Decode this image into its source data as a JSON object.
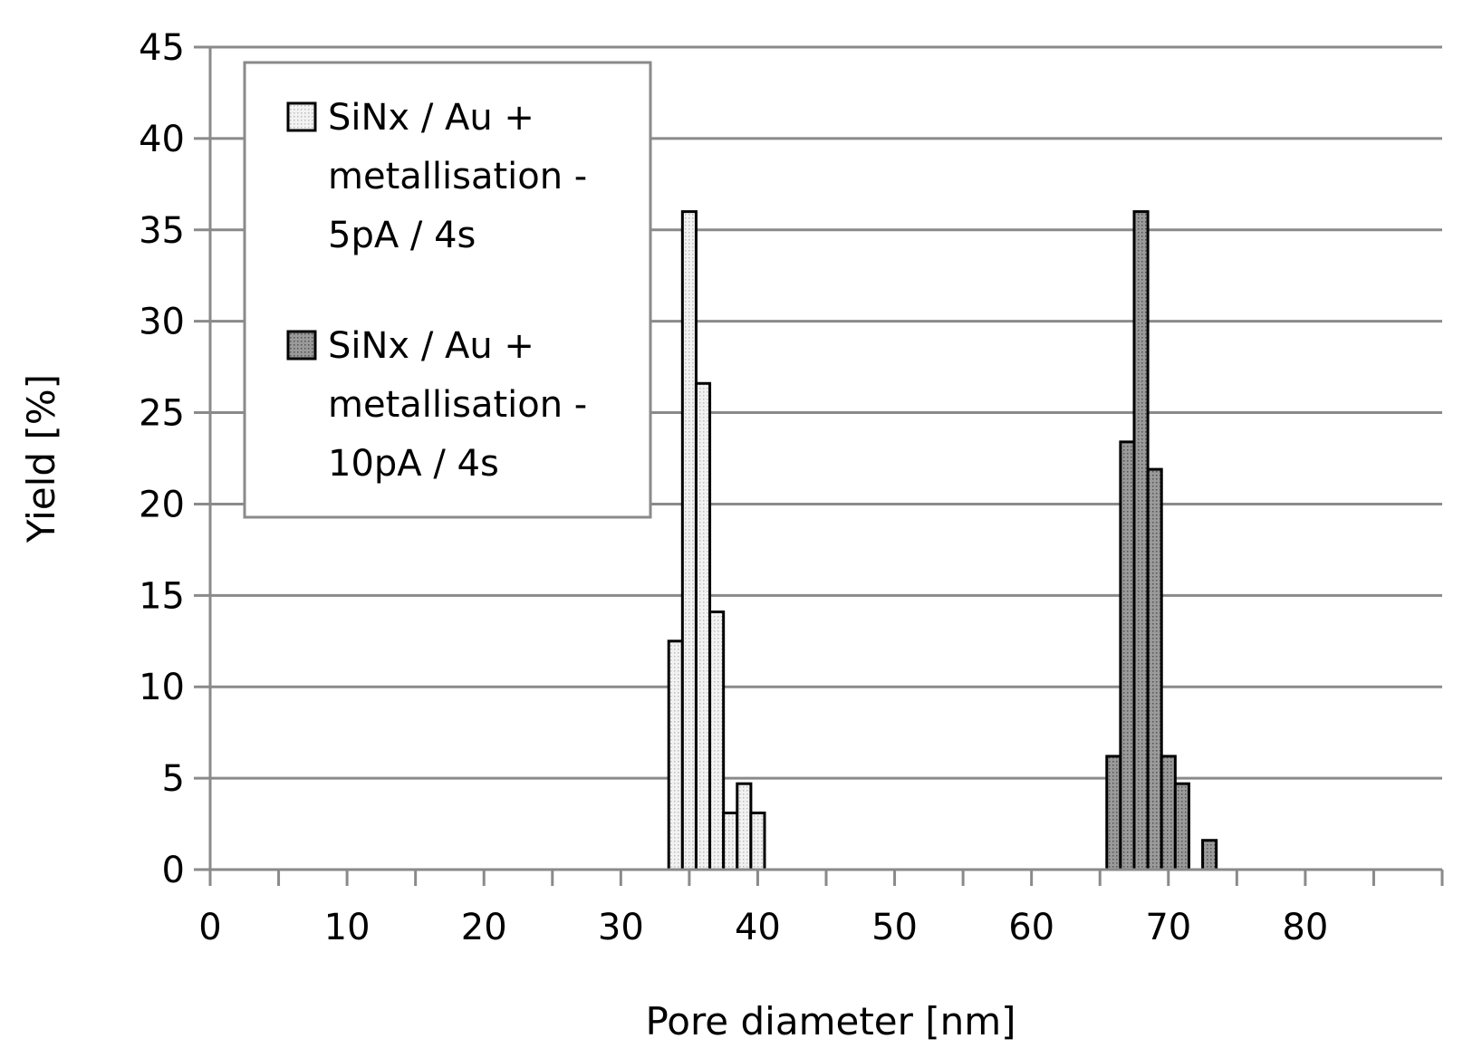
{
  "chart_data": {
    "type": "bar",
    "xlabel": "Pore diameter  [nm]",
    "ylabel": "Yield [%]",
    "xlim": [
      0,
      90
    ],
    "ylim": [
      0,
      45
    ],
    "xticks": [
      0,
      10,
      20,
      30,
      40,
      50,
      60,
      70,
      80
    ],
    "yticks": [
      0,
      5,
      10,
      15,
      20,
      25,
      30,
      35,
      40,
      45
    ],
    "bin_width": 1,
    "grid": "horizontal",
    "legend_position": "top-left",
    "series": [
      {
        "name": "SiNx / Au + metallisation - 5pA / 4s",
        "name_lines": [
          "SiNx / Au +",
          "metallisation -",
          "5pA / 4s"
        ],
        "color": "#ececec",
        "x": [
          34,
          35,
          36,
          37,
          38,
          39,
          40
        ],
        "values": [
          12.5,
          36,
          26.6,
          14.1,
          3.1,
          4.7,
          3.1
        ]
      },
      {
        "name": "SiNx / Au + metallisation - 10pA / 4s",
        "name_lines": [
          "SiNx / Au +",
          "metallisation -",
          "10pA / 4s"
        ],
        "color": "#8c8c8c",
        "x": [
          66,
          67,
          68,
          69,
          70,
          71,
          73
        ],
        "values": [
          6.2,
          23.4,
          36,
          21.9,
          6.2,
          4.7,
          1.6
        ]
      }
    ]
  }
}
